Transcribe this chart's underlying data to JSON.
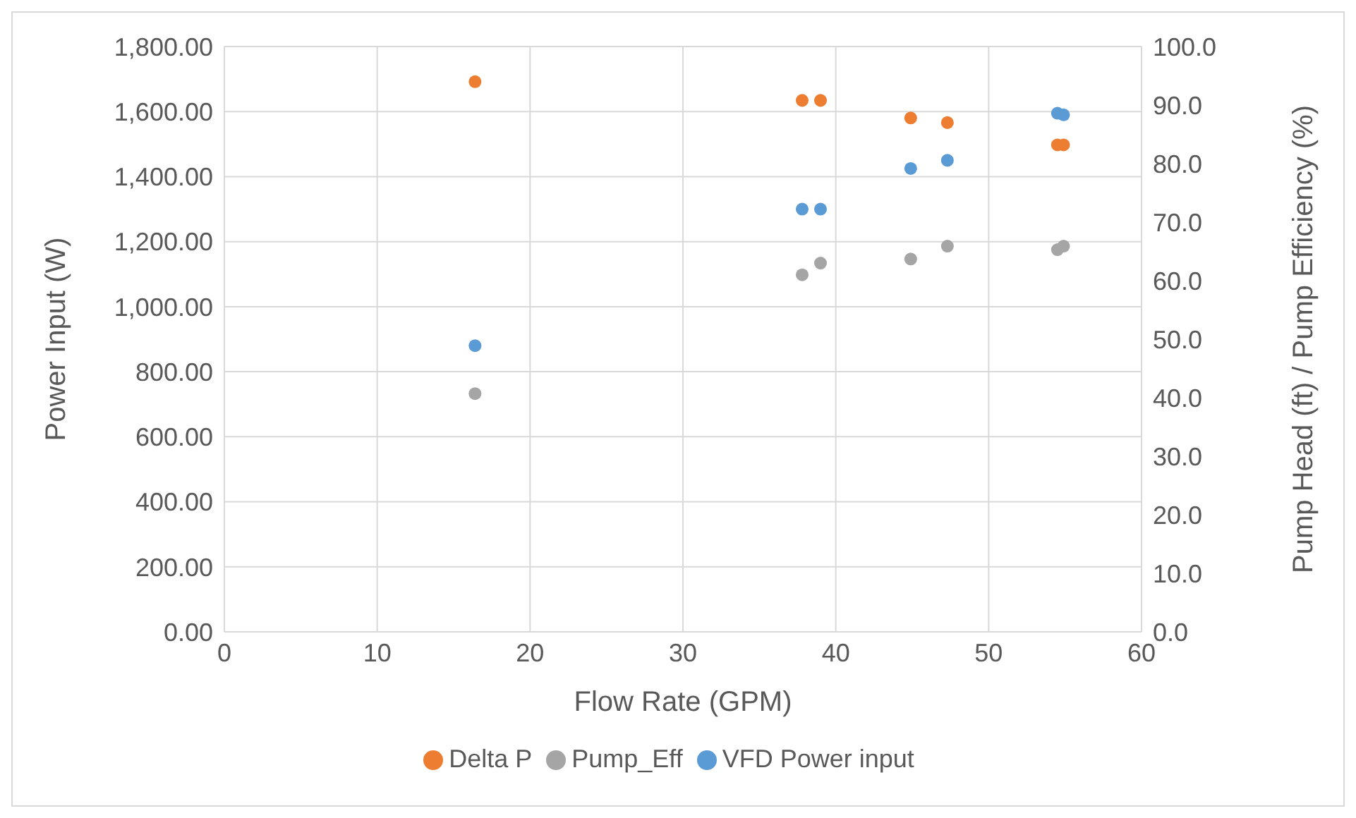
{
  "chart_data": {
    "type": "scatter",
    "xlabel": "Flow Rate (GPM)",
    "ylabel": "Power Input (W)",
    "y2label": "Pump Head (ft) / Pump Efficiency (%)",
    "xlim": [
      0,
      60
    ],
    "xticks": [
      0,
      10,
      20,
      30,
      40,
      50,
      60
    ],
    "ylim": [
      0,
      1800
    ],
    "yticks": [
      {
        "value": 0,
        "label": "0.00"
      },
      {
        "value": 200,
        "label": "200.00"
      },
      {
        "value": 400,
        "label": "400.00"
      },
      {
        "value": 600,
        "label": "600.00"
      },
      {
        "value": 800,
        "label": "800.00"
      },
      {
        "value": 1000,
        "label": "1,000.00"
      },
      {
        "value": 1200,
        "label": "1,200.00"
      },
      {
        "value": 1400,
        "label": "1,400.00"
      },
      {
        "value": 1600,
        "label": "1,600.00"
      },
      {
        "value": 1800,
        "label": "1,800.00"
      }
    ],
    "y2lim": [
      0,
      100
    ],
    "y2ticks": [
      {
        "value": 0,
        "label": "0.0"
      },
      {
        "value": 10,
        "label": "10.0"
      },
      {
        "value": 20,
        "label": "20.0"
      },
      {
        "value": 30,
        "label": "30.0"
      },
      {
        "value": 40,
        "label": "40.0"
      },
      {
        "value": 50,
        "label": "50.0"
      },
      {
        "value": 60,
        "label": "60.0"
      },
      {
        "value": 70,
        "label": "70.0"
      },
      {
        "value": 80,
        "label": "80.0"
      },
      {
        "value": 90,
        "label": "90.0"
      },
      {
        "value": 100,
        "label": "100.0"
      }
    ],
    "grid": true,
    "legend": "bottom",
    "marker": "circle",
    "series": [
      {
        "name": "VFD Power input",
        "color": "#5b9bd5",
        "x": [
          16.4,
          37.8,
          39,
          44.9,
          47.3,
          54.5,
          54.9
        ],
        "values": [
          880,
          1300,
          1300,
          1425,
          1450,
          1595,
          1590
        ]
      },
      {
        "name": "Delta P",
        "color": "#ed7d31",
        "axis": "y2",
        "x": [
          16.4,
          37.8,
          39,
          44.9,
          47.3,
          54.5,
          54.9
        ],
        "values": [
          94,
          90.8,
          90.8,
          87.8,
          87,
          83.2,
          83.2
        ]
      },
      {
        "name": "Pump_Eff",
        "color": "#a5a5a5",
        "axis": "y2",
        "x": [
          16.4,
          37.8,
          39,
          44.9,
          47.3,
          54.5,
          54.9
        ],
        "values": [
          40.7,
          61,
          63,
          63.7,
          65.9,
          65.3,
          65.9
        ]
      }
    ]
  }
}
